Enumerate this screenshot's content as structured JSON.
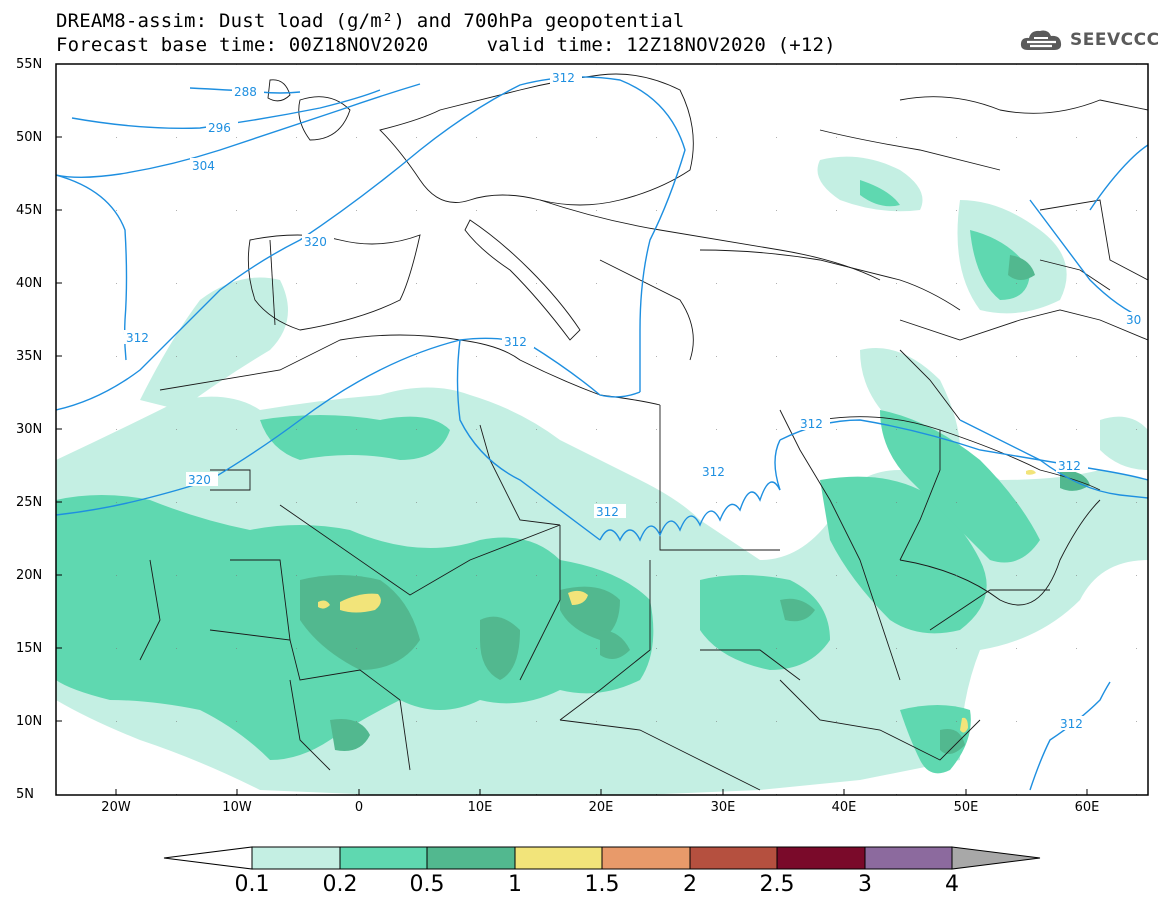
{
  "header": {
    "title_line1": "DREAM8-assim: Dust load (g/m²) and 700hPa geopotential",
    "title_line2": "Forecast base time: 00Z18NOV2020     valid time: 12Z18NOV2020 (+12)",
    "logo_text": "SEEVCCC",
    "logo_icon": "cloud-logo-icon"
  },
  "map": {
    "lat_labels": [
      "55N",
      "50N",
      "45N",
      "40N",
      "35N",
      "30N",
      "25N",
      "20N",
      "15N",
      "10N",
      "5N"
    ],
    "lon_labels": [
      "20W",
      "10W",
      "0",
      "10E",
      "20E",
      "30E",
      "40E",
      "50E",
      "60E"
    ],
    "contour_labels": [
      "288",
      "296",
      "304",
      "312",
      "320",
      "312",
      "320",
      "312",
      "312",
      "312",
      "312",
      "312",
      "30",
      "312"
    ],
    "colors": {
      "contour": "#1e8fe0",
      "dust_0_1": "#c4efe3",
      "dust_0_2": "#5fd8b0",
      "dust_0_5": "#52b88f",
      "dust_1": "#f2e47a"
    }
  },
  "colorbar": {
    "labels": [
      "0.1",
      "0.2",
      "0.5",
      "1",
      "1.5",
      "2",
      "2.5",
      "3",
      "4"
    ],
    "colors": [
      "#c4efe3",
      "#5fd8b0",
      "#52b88f",
      "#f2e47a",
      "#e89a6a",
      "#b5503f",
      "#7a0a2a",
      "#8c6a9e"
    ]
  }
}
